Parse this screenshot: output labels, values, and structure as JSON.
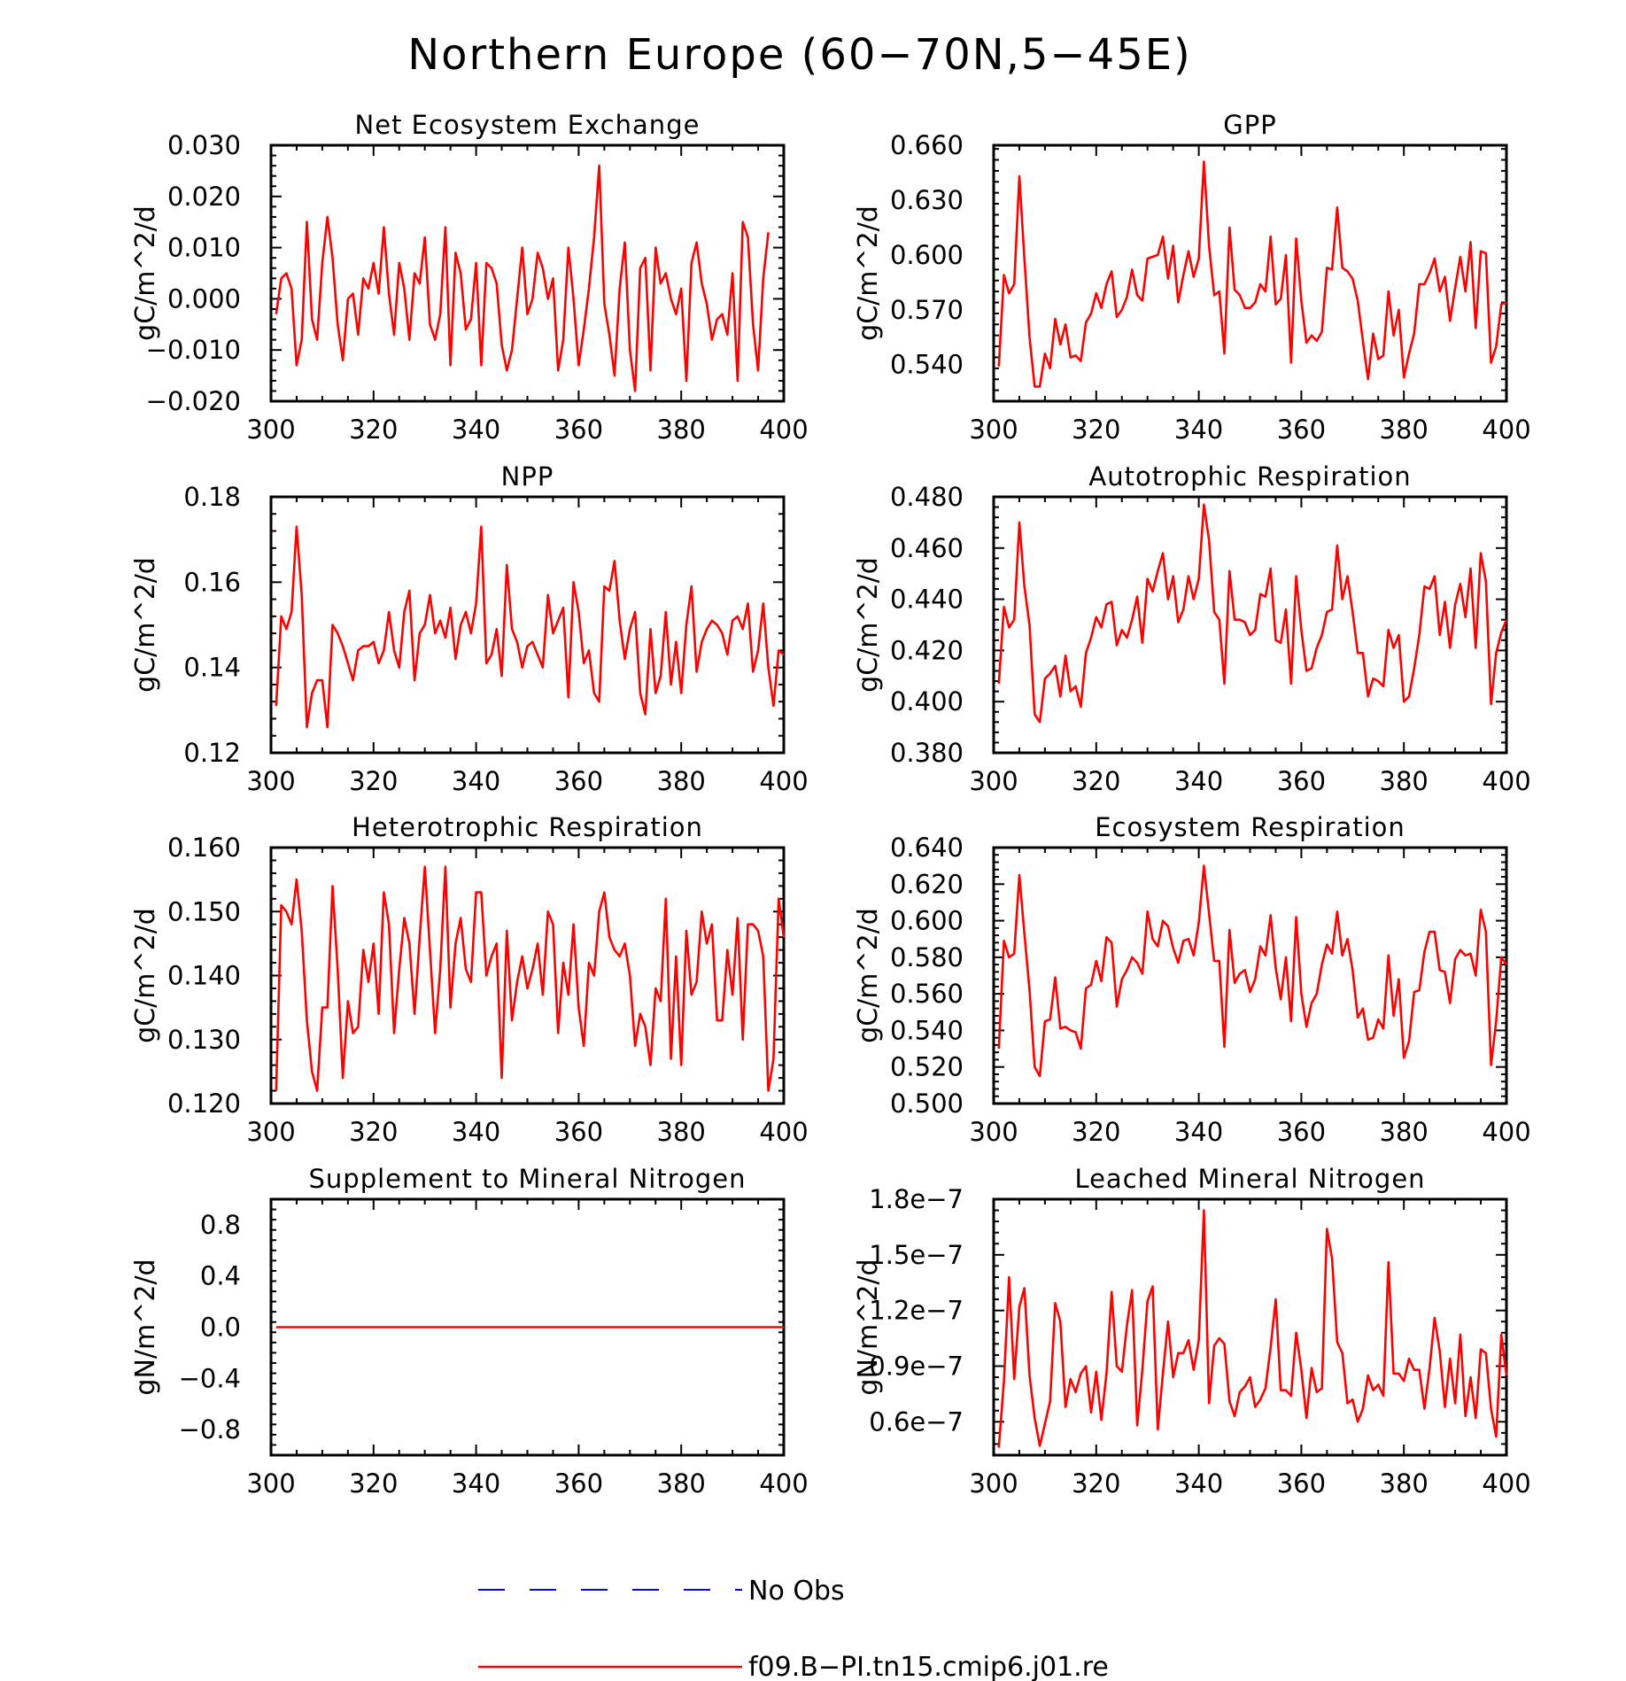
{
  "figure": {
    "title": "Northern Europe (60−70N,5−45E)",
    "legend": {
      "entries": [
        {
          "label": "No Obs",
          "color": "#0000ff",
          "style": "dashed"
        },
        {
          "label": "f09.B−PI.tn15.cmip6.j01.re",
          "color": "#ff0000",
          "style": "solid"
        }
      ]
    }
  },
  "chart_data": [
    {
      "type": "line",
      "title": "Net Ecosystem Exchange",
      "xlabel": "",
      "ylabel": "gC/m^2/d",
      "xlim": [
        301,
        400
      ],
      "ylim": [
        -0.02,
        0.03
      ],
      "xticks": [
        "300",
        "320",
        "340",
        "360",
        "380",
        "400"
      ],
      "yticks": [
        "−0.020",
        "−0.010",
        "0.000",
        "0.010",
        "0.020",
        "0.030"
      ],
      "ytick_values": [
        -0.02,
        -0.01,
        0.0,
        0.01,
        0.02,
        0.03
      ],
      "series": [
        {
          "color": "#ff0000",
          "values": [
            -0.003,
            0.004,
            0.005,
            0.002,
            -0.013,
            -0.008,
            0.015,
            -0.004,
            -0.008,
            0.007,
            0.016,
            0.008,
            -0.005,
            -0.012,
            0.0,
            0.001,
            -0.007,
            0.004,
            0.002,
            0.007,
            0.001,
            0.014,
            0.001,
            -0.007,
            0.007,
            0.002,
            -0.008,
            0.005,
            0.003,
            0.012,
            -0.005,
            -0.008,
            -0.003,
            0.014,
            -0.013,
            0.009,
            0.005,
            -0.006,
            -0.004,
            0.007,
            -0.013,
            0.007,
            0.006,
            0.003,
            -0.009,
            -0.014,
            -0.01,
            0.0,
            0.01,
            -0.003,
            0.0,
            0.009,
            0.006,
            0.0,
            0.004,
            -0.014,
            -0.008,
            0.01,
            0.0,
            -0.013,
            -0.006,
            0.002,
            0.012,
            0.026,
            -0.001,
            -0.007,
            -0.015,
            0.002,
            0.011,
            -0.01,
            -0.018,
            0.006,
            0.008,
            -0.014,
            0.01,
            0.003,
            0.005,
            0.0,
            -0.003,
            0.002,
            -0.016,
            0.007,
            0.011,
            0.003,
            -0.001,
            -0.008,
            -0.004,
            -0.003,
            -0.007,
            0.005,
            -0.016,
            0.015,
            0.012,
            -0.005,
            -0.014,
            0.004,
            0.013
          ]
        }
      ]
    },
    {
      "type": "line",
      "title": "GPP",
      "xlabel": "",
      "ylabel": "gC/m^2/d",
      "xlim": [
        301,
        400
      ],
      "ylim": [
        0.52,
        0.66
      ],
      "xticks": [
        "300",
        "320",
        "340",
        "360",
        "380",
        "400"
      ],
      "yticks": [
        "0.540",
        "0.570",
        "0.600",
        "0.630",
        "0.660"
      ],
      "ytick_values": [
        0.54,
        0.57,
        0.6,
        0.63,
        0.66
      ],
      "series": [
        {
          "color": "#ff0000",
          "values": [
            0.539,
            0.589,
            0.579,
            0.584,
            0.643,
            0.598,
            0.555,
            0.528,
            0.528,
            0.546,
            0.538,
            0.565,
            0.551,
            0.562,
            0.544,
            0.545,
            0.542,
            0.563,
            0.568,
            0.579,
            0.571,
            0.584,
            0.591,
            0.566,
            0.57,
            0.577,
            0.592,
            0.578,
            0.575,
            0.598,
            0.599,
            0.6,
            0.61,
            0.587,
            0.605,
            0.574,
            0.589,
            0.602,
            0.588,
            0.598,
            0.651,
            0.605,
            0.578,
            0.58,
            0.546,
            0.615,
            0.581,
            0.578,
            0.571,
            0.571,
            0.574,
            0.584,
            0.58,
            0.61,
            0.573,
            0.576,
            0.6,
            0.541,
            0.609,
            0.575,
            0.552,
            0.556,
            0.553,
            0.558,
            0.593,
            0.592,
            0.626,
            0.593,
            0.591,
            0.587,
            0.575,
            0.553,
            0.532,
            0.557,
            0.543,
            0.545,
            0.58,
            0.556,
            0.57,
            0.533,
            0.546,
            0.557,
            0.584,
            0.584,
            0.59,
            0.598,
            0.58,
            0.588,
            0.564,
            0.582,
            0.599,
            0.58,
            0.607,
            0.56,
            0.602,
            0.601,
            0.541,
            0.55,
            0.573,
            0.574
          ]
        }
      ]
    },
    {
      "type": "line",
      "title": "NPP",
      "xlabel": "",
      "ylabel": "gC/m^2/d",
      "xlim": [
        301,
        400
      ],
      "ylim": [
        0.12,
        0.18
      ],
      "xticks": [
        "300",
        "320",
        "340",
        "360",
        "380",
        "400"
      ],
      "yticks": [
        "0.12",
        "0.14",
        "0.16",
        "0.18"
      ],
      "ytick_values": [
        0.12,
        0.14,
        0.16,
        0.18
      ],
      "series": [
        {
          "color": "#ff0000",
          "values": [
            0.131,
            0.152,
            0.149,
            0.153,
            0.173,
            0.157,
            0.126,
            0.134,
            0.137,
            0.137,
            0.126,
            0.15,
            0.148,
            0.145,
            0.141,
            0.137,
            0.144,
            0.145,
            0.145,
            0.146,
            0.141,
            0.144,
            0.153,
            0.144,
            0.14,
            0.153,
            0.158,
            0.137,
            0.148,
            0.15,
            0.157,
            0.148,
            0.151,
            0.147,
            0.154,
            0.142,
            0.15,
            0.153,
            0.148,
            0.155,
            0.173,
            0.141,
            0.143,
            0.149,
            0.138,
            0.164,
            0.149,
            0.146,
            0.14,
            0.145,
            0.146,
            0.143,
            0.14,
            0.157,
            0.148,
            0.151,
            0.154,
            0.133,
            0.16,
            0.153,
            0.141,
            0.144,
            0.134,
            0.132,
            0.159,
            0.158,
            0.165,
            0.151,
            0.142,
            0.149,
            0.153,
            0.134,
            0.129,
            0.149,
            0.134,
            0.138,
            0.153,
            0.136,
            0.146,
            0.134,
            0.15,
            0.159,
            0.139,
            0.146,
            0.149,
            0.151,
            0.15,
            0.148,
            0.143,
            0.151,
            0.152,
            0.149,
            0.155,
            0.139,
            0.144,
            0.155,
            0.14,
            0.131,
            0.144,
            0.143
          ]
        }
      ]
    },
    {
      "type": "line",
      "title": "Autotrophic Respiration",
      "xlabel": "",
      "ylabel": "gC/m^2/d",
      "xlim": [
        301,
        400
      ],
      "ylim": [
        0.38,
        0.48
      ],
      "xticks": [
        "300",
        "320",
        "340",
        "360",
        "380",
        "400"
      ],
      "yticks": [
        "0.380",
        "0.400",
        "0.420",
        "0.440",
        "0.460",
        "0.480"
      ],
      "ytick_values": [
        0.38,
        0.4,
        0.42,
        0.44,
        0.46,
        0.48
      ],
      "series": [
        {
          "color": "#ff0000",
          "values": [
            0.407,
            0.437,
            0.429,
            0.432,
            0.47,
            0.445,
            0.43,
            0.395,
            0.392,
            0.409,
            0.411,
            0.414,
            0.402,
            0.418,
            0.404,
            0.406,
            0.398,
            0.419,
            0.425,
            0.433,
            0.429,
            0.438,
            0.439,
            0.422,
            0.428,
            0.425,
            0.432,
            0.441,
            0.423,
            0.448,
            0.443,
            0.451,
            0.458,
            0.44,
            0.449,
            0.431,
            0.436,
            0.449,
            0.44,
            0.448,
            0.477,
            0.463,
            0.435,
            0.432,
            0.407,
            0.451,
            0.432,
            0.432,
            0.431,
            0.426,
            0.428,
            0.442,
            0.441,
            0.452,
            0.424,
            0.423,
            0.436,
            0.407,
            0.449,
            0.428,
            0.412,
            0.413,
            0.421,
            0.426,
            0.435,
            0.436,
            0.461,
            0.44,
            0.449,
            0.435,
            0.419,
            0.419,
            0.402,
            0.409,
            0.408,
            0.406,
            0.428,
            0.421,
            0.426,
            0.4,
            0.402,
            0.413,
            0.426,
            0.445,
            0.444,
            0.449,
            0.426,
            0.439,
            0.421,
            0.438,
            0.446,
            0.433,
            0.452,
            0.421,
            0.458,
            0.447,
            0.399,
            0.419,
            0.427,
            0.432
          ]
        }
      ]
    },
    {
      "type": "line",
      "title": "Heterotrophic Respiration",
      "xlabel": "",
      "ylabel": "gC/m^2/d",
      "xlim": [
        301,
        400
      ],
      "ylim": [
        0.12,
        0.16
      ],
      "xticks": [
        "300",
        "320",
        "340",
        "360",
        "380",
        "400"
      ],
      "yticks": [
        "0.120",
        "0.130",
        "0.140",
        "0.150",
        "0.160"
      ],
      "ytick_values": [
        0.12,
        0.13,
        0.14,
        0.15,
        0.16
      ],
      "series": [
        {
          "color": "#ff0000",
          "values": [
            0.122,
            0.151,
            0.15,
            0.148,
            0.155,
            0.147,
            0.133,
            0.125,
            0.122,
            0.135,
            0.135,
            0.154,
            0.141,
            0.124,
            0.136,
            0.131,
            0.132,
            0.144,
            0.139,
            0.145,
            0.134,
            0.153,
            0.148,
            0.131,
            0.141,
            0.149,
            0.145,
            0.134,
            0.146,
            0.157,
            0.144,
            0.131,
            0.141,
            0.157,
            0.135,
            0.145,
            0.149,
            0.141,
            0.139,
            0.153,
            0.153,
            0.14,
            0.143,
            0.145,
            0.124,
            0.147,
            0.133,
            0.139,
            0.143,
            0.138,
            0.141,
            0.145,
            0.137,
            0.15,
            0.148,
            0.131,
            0.142,
            0.137,
            0.148,
            0.135,
            0.129,
            0.142,
            0.14,
            0.15,
            0.153,
            0.146,
            0.144,
            0.143,
            0.145,
            0.14,
            0.129,
            0.134,
            0.132,
            0.126,
            0.138,
            0.136,
            0.152,
            0.127,
            0.143,
            0.126,
            0.147,
            0.137,
            0.139,
            0.15,
            0.145,
            0.148,
            0.133,
            0.133,
            0.144,
            0.137,
            0.149,
            0.13,
            0.148,
            0.148,
            0.147,
            0.143,
            0.122,
            0.127,
            0.152,
            0.146
          ]
        }
      ]
    },
    {
      "type": "line",
      "title": "Ecosystem Respiration",
      "xlabel": "",
      "ylabel": "gC/m^2/d",
      "xlim": [
        301,
        400
      ],
      "ylim": [
        0.5,
        0.64
      ],
      "xticks": [
        "300",
        "320",
        "340",
        "360",
        "380",
        "400"
      ],
      "yticks": [
        "0.500",
        "0.520",
        "0.540",
        "0.560",
        "0.580",
        "0.600",
        "0.620",
        "0.640"
      ],
      "ytick_values": [
        0.5,
        0.52,
        0.54,
        0.56,
        0.58,
        0.6,
        0.62,
        0.64
      ],
      "series": [
        {
          "color": "#ff0000",
          "values": [
            0.53,
            0.589,
            0.58,
            0.582,
            0.625,
            0.593,
            0.562,
            0.52,
            0.515,
            0.545,
            0.546,
            0.569,
            0.541,
            0.542,
            0.54,
            0.539,
            0.53,
            0.563,
            0.565,
            0.578,
            0.567,
            0.591,
            0.588,
            0.553,
            0.568,
            0.573,
            0.58,
            0.577,
            0.571,
            0.605,
            0.59,
            0.586,
            0.6,
            0.597,
            0.585,
            0.577,
            0.589,
            0.59,
            0.581,
            0.599,
            0.63,
            0.604,
            0.578,
            0.578,
            0.531,
            0.595,
            0.566,
            0.571,
            0.573,
            0.561,
            0.568,
            0.586,
            0.581,
            0.603,
            0.574,
            0.557,
            0.58,
            0.545,
            0.602,
            0.56,
            0.542,
            0.555,
            0.56,
            0.576,
            0.587,
            0.582,
            0.605,
            0.581,
            0.59,
            0.573,
            0.547,
            0.552,
            0.535,
            0.536,
            0.546,
            0.541,
            0.581,
            0.548,
            0.568,
            0.525,
            0.534,
            0.561,
            0.562,
            0.583,
            0.594,
            0.594,
            0.573,
            0.572,
            0.555,
            0.579,
            0.584,
            0.581,
            0.582,
            0.57,
            0.606,
            0.594,
            0.521,
            0.545,
            0.58,
            0.576
          ]
        }
      ]
    },
    {
      "type": "line",
      "title": "Supplement to Mineral Nitrogen",
      "xlabel": "",
      "ylabel": "gN/m^2/d",
      "xlim": [
        301,
        400
      ],
      "ylim": [
        -1.0,
        1.0
      ],
      "xticks": [
        "300",
        "320",
        "340",
        "360",
        "380",
        "400"
      ],
      "yticks": [
        "−0.8",
        "−0.4",
        "0.0",
        "0.4",
        "0.8"
      ],
      "ytick_values": [
        -0.8,
        -0.4,
        0.0,
        0.4,
        0.8
      ],
      "series": [
        {
          "color": "#ff0000",
          "x": [
            301,
            400
          ],
          "values": [
            0.0,
            0.0
          ]
        }
      ]
    },
    {
      "type": "line",
      "title": "Leached Mineral Nitrogen",
      "xlabel": "",
      "ylabel": "gN/m^2/d",
      "xlim": [
        301,
        400
      ],
      "ylim": [
        4.2e-08,
        1.8e-07
      ],
      "xticks": [
        "300",
        "320",
        "340",
        "360",
        "380",
        "400"
      ],
      "yticks": [
        "0.6e−7",
        "0.9e−7",
        "1.2e−7",
        "1.5e−7",
        "1.8e−7"
      ],
      "ytick_values": [
        6e-08,
        9e-08,
        1.2e-07,
        1.5e-07,
        1.8e-07
      ],
      "series": [
        {
          "color": "#ff0000",
          "values": [
            4.6e-08,
            8.2e-08,
            1.38e-07,
            8.3e-08,
            1.22e-07,
            1.32e-07,
            8.5e-08,
            6.2e-08,
            4.7e-08,
            5.9e-08,
            7.1e-08,
            1.24e-07,
            1.14e-07,
            6.8e-08,
            8.3e-08,
            7.6e-08,
            8.6e-08,
            9e-08,
            6.5e-08,
            8.7e-08,
            6.1e-08,
            8.6e-08,
            1.3e-07,
            9e-08,
            8.7e-08,
            1.12e-07,
            1.31e-07,
            5.8e-08,
            8.8e-08,
            1.25e-07,
            1.33e-07,
            5.6e-08,
            8.6e-08,
            1.14e-07,
            8.4e-08,
            9.7e-08,
            9.7e-08,
            1.04e-07,
            8.8e-08,
            1.04e-07,
            1.74e-07,
            7e-08,
            1.01e-07,
            1.05e-07,
            1.02e-07,
            7.1e-08,
            6.3e-08,
            7.6e-08,
            7.9e-08,
            8.4e-08,
            6.8e-08,
            7.2e-08,
            7.8e-08,
            1e-07,
            1.26e-07,
            7.7e-08,
            7.7e-08,
            7.4e-08,
            1.08e-07,
            8.8e-08,
            6.2e-08,
            8.9e-08,
            7.6e-08,
            7.8e-08,
            1.64e-07,
            1.48e-07,
            1.03e-07,
            9.7e-08,
            7e-08,
            7.2e-08,
            6e-08,
            6.7e-08,
            8.5e-08,
            7.7e-08,
            8e-08,
            7.4e-08,
            1.46e-07,
            8.6e-08,
            8.6e-08,
            8.2e-08,
            9.4e-08,
            8.8e-08,
            8.8e-08,
            6.7e-08,
            8.9e-08,
            1.16e-07,
            9.8e-08,
            6.8e-08,
            9.4e-08,
            7e-08,
            1.07e-07,
            6.3e-08,
            8.4e-08,
            6.2e-08,
            9.9e-08,
            9.7e-08,
            6.7e-08,
            5.2e-08,
            1.07e-07,
            8.5e-08
          ]
        }
      ]
    }
  ]
}
